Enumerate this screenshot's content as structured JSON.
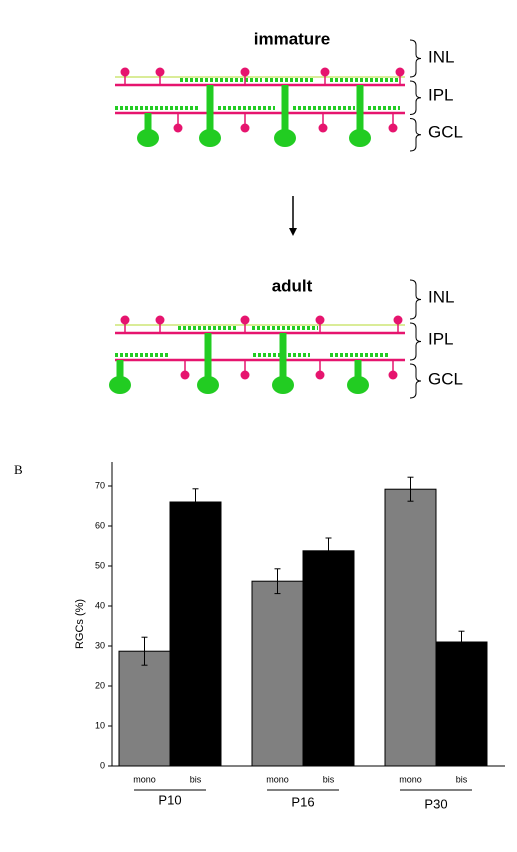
{
  "diagram": {
    "panels": [
      {
        "title": "immature",
        "layers": [
          "INL",
          "IPL",
          "GCL"
        ]
      },
      {
        "title": "adult",
        "layers": [
          "INL",
          "IPL",
          "GCL"
        ]
      }
    ]
  },
  "panel_label": "B",
  "chart_data": {
    "type": "bar",
    "y_label": "RGCs (%)",
    "categories": [
      "P10",
      "P16",
      "P30"
    ],
    "series": [
      {
        "name": "mono",
        "color": "#808080",
        "values": [
          28.7,
          46.2,
          69.2
        ],
        "errors": [
          3.5,
          3.1,
          3.0
        ]
      },
      {
        "name": "bis",
        "color": "#000000",
        "values": [
          66,
          53.8,
          31
        ],
        "errors": [
          3.3,
          3.2,
          2.7
        ]
      }
    ],
    "ylim": [
      0,
      76
    ],
    "yticks": [
      0,
      10,
      20,
      30,
      40,
      50,
      60,
      70
    ]
  }
}
